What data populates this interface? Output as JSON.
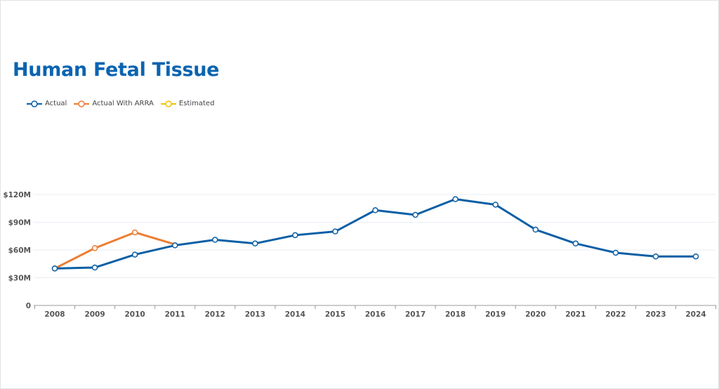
{
  "chart_data": {
    "type": "line",
    "title": "Human Fetal Tissue",
    "xlabel": "",
    "ylabel": "",
    "x": [
      "2008",
      "2009",
      "2010",
      "2011",
      "2012",
      "2013",
      "2014",
      "2015",
      "2016",
      "2017",
      "2018",
      "2019",
      "2020",
      "2021",
      "2022",
      "2023",
      "2024"
    ],
    "ylim": [
      0,
      120
    ],
    "yticks": [
      0,
      30,
      60,
      90,
      120
    ],
    "ytick_labels": [
      "0",
      "$30M",
      "$60M",
      "$90M",
      "$120M"
    ],
    "grid": true,
    "legend_position": "top-left",
    "series": [
      {
        "name": "Actual",
        "color": "#0b5fa5",
        "values": [
          40,
          41,
          55,
          65,
          71,
          67,
          76,
          80,
          103,
          98,
          115,
          109,
          82,
          67,
          57,
          53,
          53
        ]
      },
      {
        "name": "Actual With ARRA",
        "color": "#ed7d31",
        "values": [
          40,
          62,
          79,
          66,
          null,
          null,
          null,
          null,
          null,
          null,
          null,
          null,
          null,
          null,
          null,
          null,
          null
        ]
      },
      {
        "name": "Estimated",
        "color": "#f2c300",
        "values": [
          null,
          null,
          null,
          null,
          null,
          null,
          null,
          null,
          null,
          null,
          null,
          null,
          null,
          null,
          null,
          null,
          null
        ]
      }
    ]
  }
}
